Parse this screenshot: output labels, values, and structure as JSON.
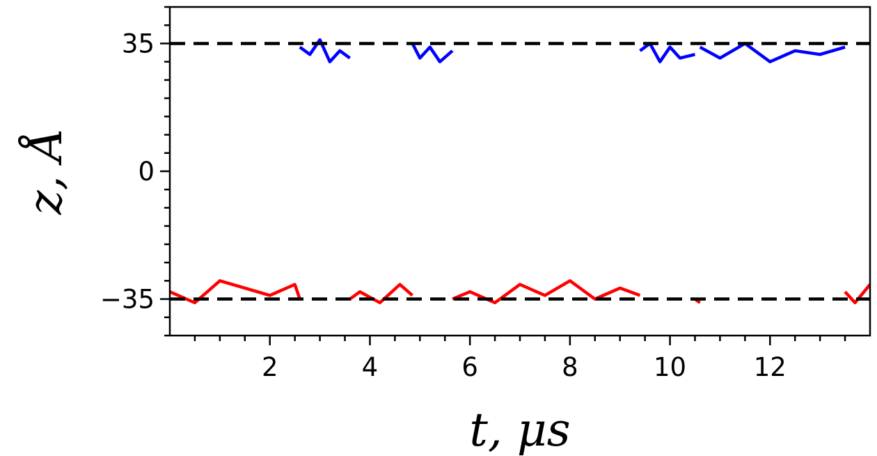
{
  "chart_data": {
    "type": "line",
    "xlabel": "t,  μs",
    "ylabel": "z,  Å",
    "xlim": [
      0.0,
      14.0
    ],
    "ylim": [
      -45.0,
      45.0
    ],
    "x_ticks": [
      2,
      4,
      6,
      8,
      10,
      12
    ],
    "x_tick_labels": [
      "2",
      "4",
      "6",
      "8",
      "10",
      "12"
    ],
    "y_ticks": [
      -35,
      0,
      35
    ],
    "y_tick_labels": [
      "−35",
      "0",
      "35"
    ],
    "reference_lines": [
      -35,
      35
    ],
    "reference_line_color": "#000000",
    "grid": false,
    "legend": "none",
    "series": [
      {
        "color": "#ff0000",
        "segments": [
          {
            "x": [
              0.0,
              0.5,
              1.0,
              1.5,
              2.0,
              2.5,
              2.6
            ],
            "y": [
              -33,
              -36,
              -30,
              -32,
              -34,
              -31,
              -35
            ]
          },
          {
            "x": [
              3.6,
              3.8,
              4.2,
              4.6,
              4.85
            ],
            "y": [
              -35,
              -33,
              -36,
              -31,
              -34
            ]
          },
          {
            "x": [
              5.65,
              6.0,
              6.5,
              7.0,
              7.5,
              8.0,
              8.5,
              9.0,
              9.4
            ],
            "y": [
              -35,
              -33,
              -36,
              -31,
              -34,
              -30,
              -35,
              -32,
              -34
            ]
          },
          {
            "x": [
              10.5,
              10.6
            ],
            "y": [
              -35,
              -36
            ]
          },
          {
            "x": [
              13.5,
              13.7,
              14.0
            ],
            "y": [
              -33,
              -36,
              -31
            ]
          }
        ]
      },
      {
        "color": "#0000ff",
        "segments": [
          {
            "x": [
              2.6,
              2.8,
              3.0,
              3.2,
              3.4,
              3.6
            ],
            "y": [
              34,
              32,
              36,
              30,
              33,
              31
            ]
          },
          {
            "x": [
              4.85,
              5.0,
              5.2,
              5.4,
              5.65
            ],
            "y": [
              35,
              31,
              34,
              30,
              33
            ]
          },
          {
            "x": [
              9.4,
              9.6,
              9.8,
              10.0,
              10.2,
              10.5
            ],
            "y": [
              33,
              35,
              30,
              34,
              31,
              32
            ]
          },
          {
            "x": [
              10.6,
              11.0,
              11.5,
              12.0,
              12.5,
              13.0,
              13.5
            ],
            "y": [
              34,
              31,
              35,
              30,
              33,
              32,
              34
            ]
          }
        ]
      }
    ]
  }
}
